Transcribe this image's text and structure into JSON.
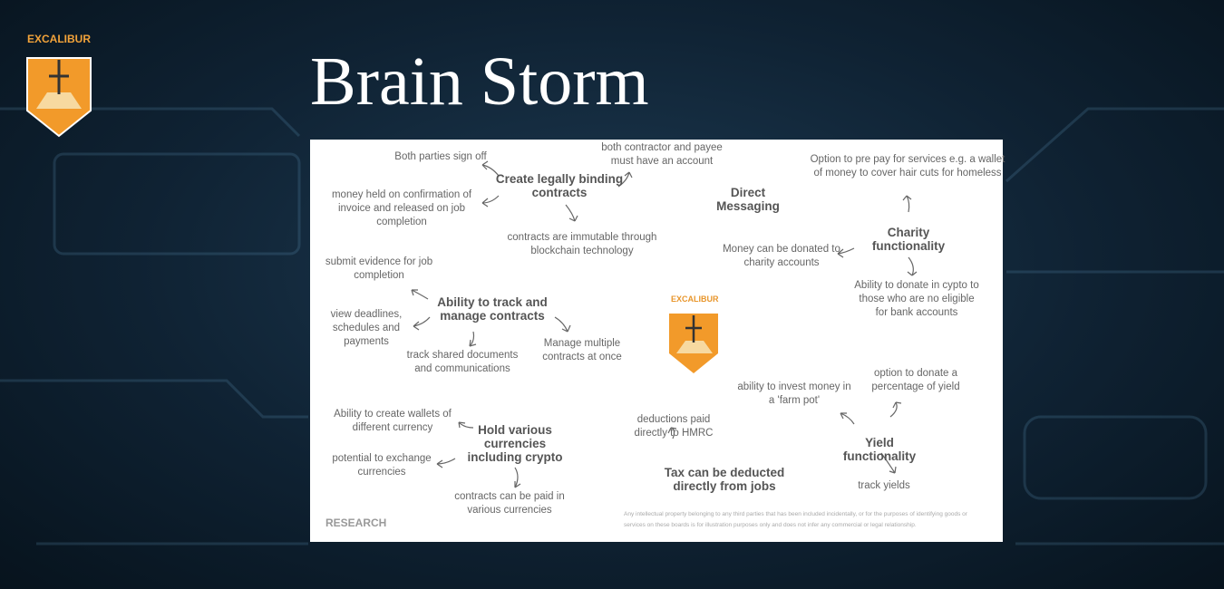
{
  "header": {
    "logo_text": "EXCALIBUR",
    "title": "Brain Storm"
  },
  "board": {
    "notes": [
      "Both parties sign off",
      "Create legally binding contracts",
      "both contractor and payee must have an account",
      "money held on confirmation of invoice and released on job completion",
      "contracts are immutable through blockchain technology",
      "Direct Messaging",
      "Option to pre pay for services e.g. a wallet of money to cover hair cuts for homeless",
      "Charity functionality",
      "Money can be donated to charity accounts",
      "Ability to donate in cypto to those who are no eligible for bank accounts",
      "submit evidence for job completion",
      "Ability to track and manage contracts",
      "view deadlines, schedules and payments",
      "track shared documents and communications",
      "Manage multiple contracts at once",
      "ability to invest money in a 'farm pot'",
      "option to donate a percentage of yield",
      "deductions paid directly to HMRC",
      "Ability to create wallets of different currency",
      "Hold various currencies including crypto",
      "potential to exchange currencies",
      "Yield functionality",
      "track yields",
      "Tax can be deducted directly from jobs",
      "contracts can be paid in various currencies"
    ],
    "center_logo_text": "EXCALIBUR",
    "footer": "RESEARCH",
    "disclaimer": "Any intellectual property belonging to any third parties that has been included incidentally, or for the purposes of identifying goods or services on these boards is for illustration purposes only and does not infer any commercial or legal relationship."
  }
}
